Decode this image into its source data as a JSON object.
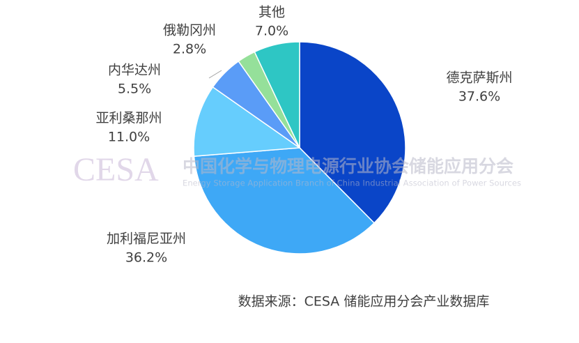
{
  "chart_data": {
    "type": "pie",
    "categories": [
      "德克萨斯州",
      "加利福尼亚州",
      "亚利桑那州",
      "内华达州",
      "俄勒冈州",
      "其他"
    ],
    "values": [
      37.6,
      36.2,
      11.0,
      5.5,
      2.8,
      7.0
    ],
    "value_labels": [
      "37.6%",
      "36.2%",
      "11.0%",
      "5.5%",
      "2.8%",
      "7.0%"
    ],
    "colors": [
      "#0a45c8",
      "#3ea8f6",
      "#66cdfd",
      "#5a9cf7",
      "#95e09a",
      "#2ec6c4"
    ],
    "source": "数据来源：CESA 储能应用分会产业数据库"
  },
  "watermark": {
    "logo": "CESA",
    "name": "中国化学与物理电源行业协会储能应用分会",
    "english": "Energy Storage Application Branch of China Industrial Association of Power Sources"
  }
}
